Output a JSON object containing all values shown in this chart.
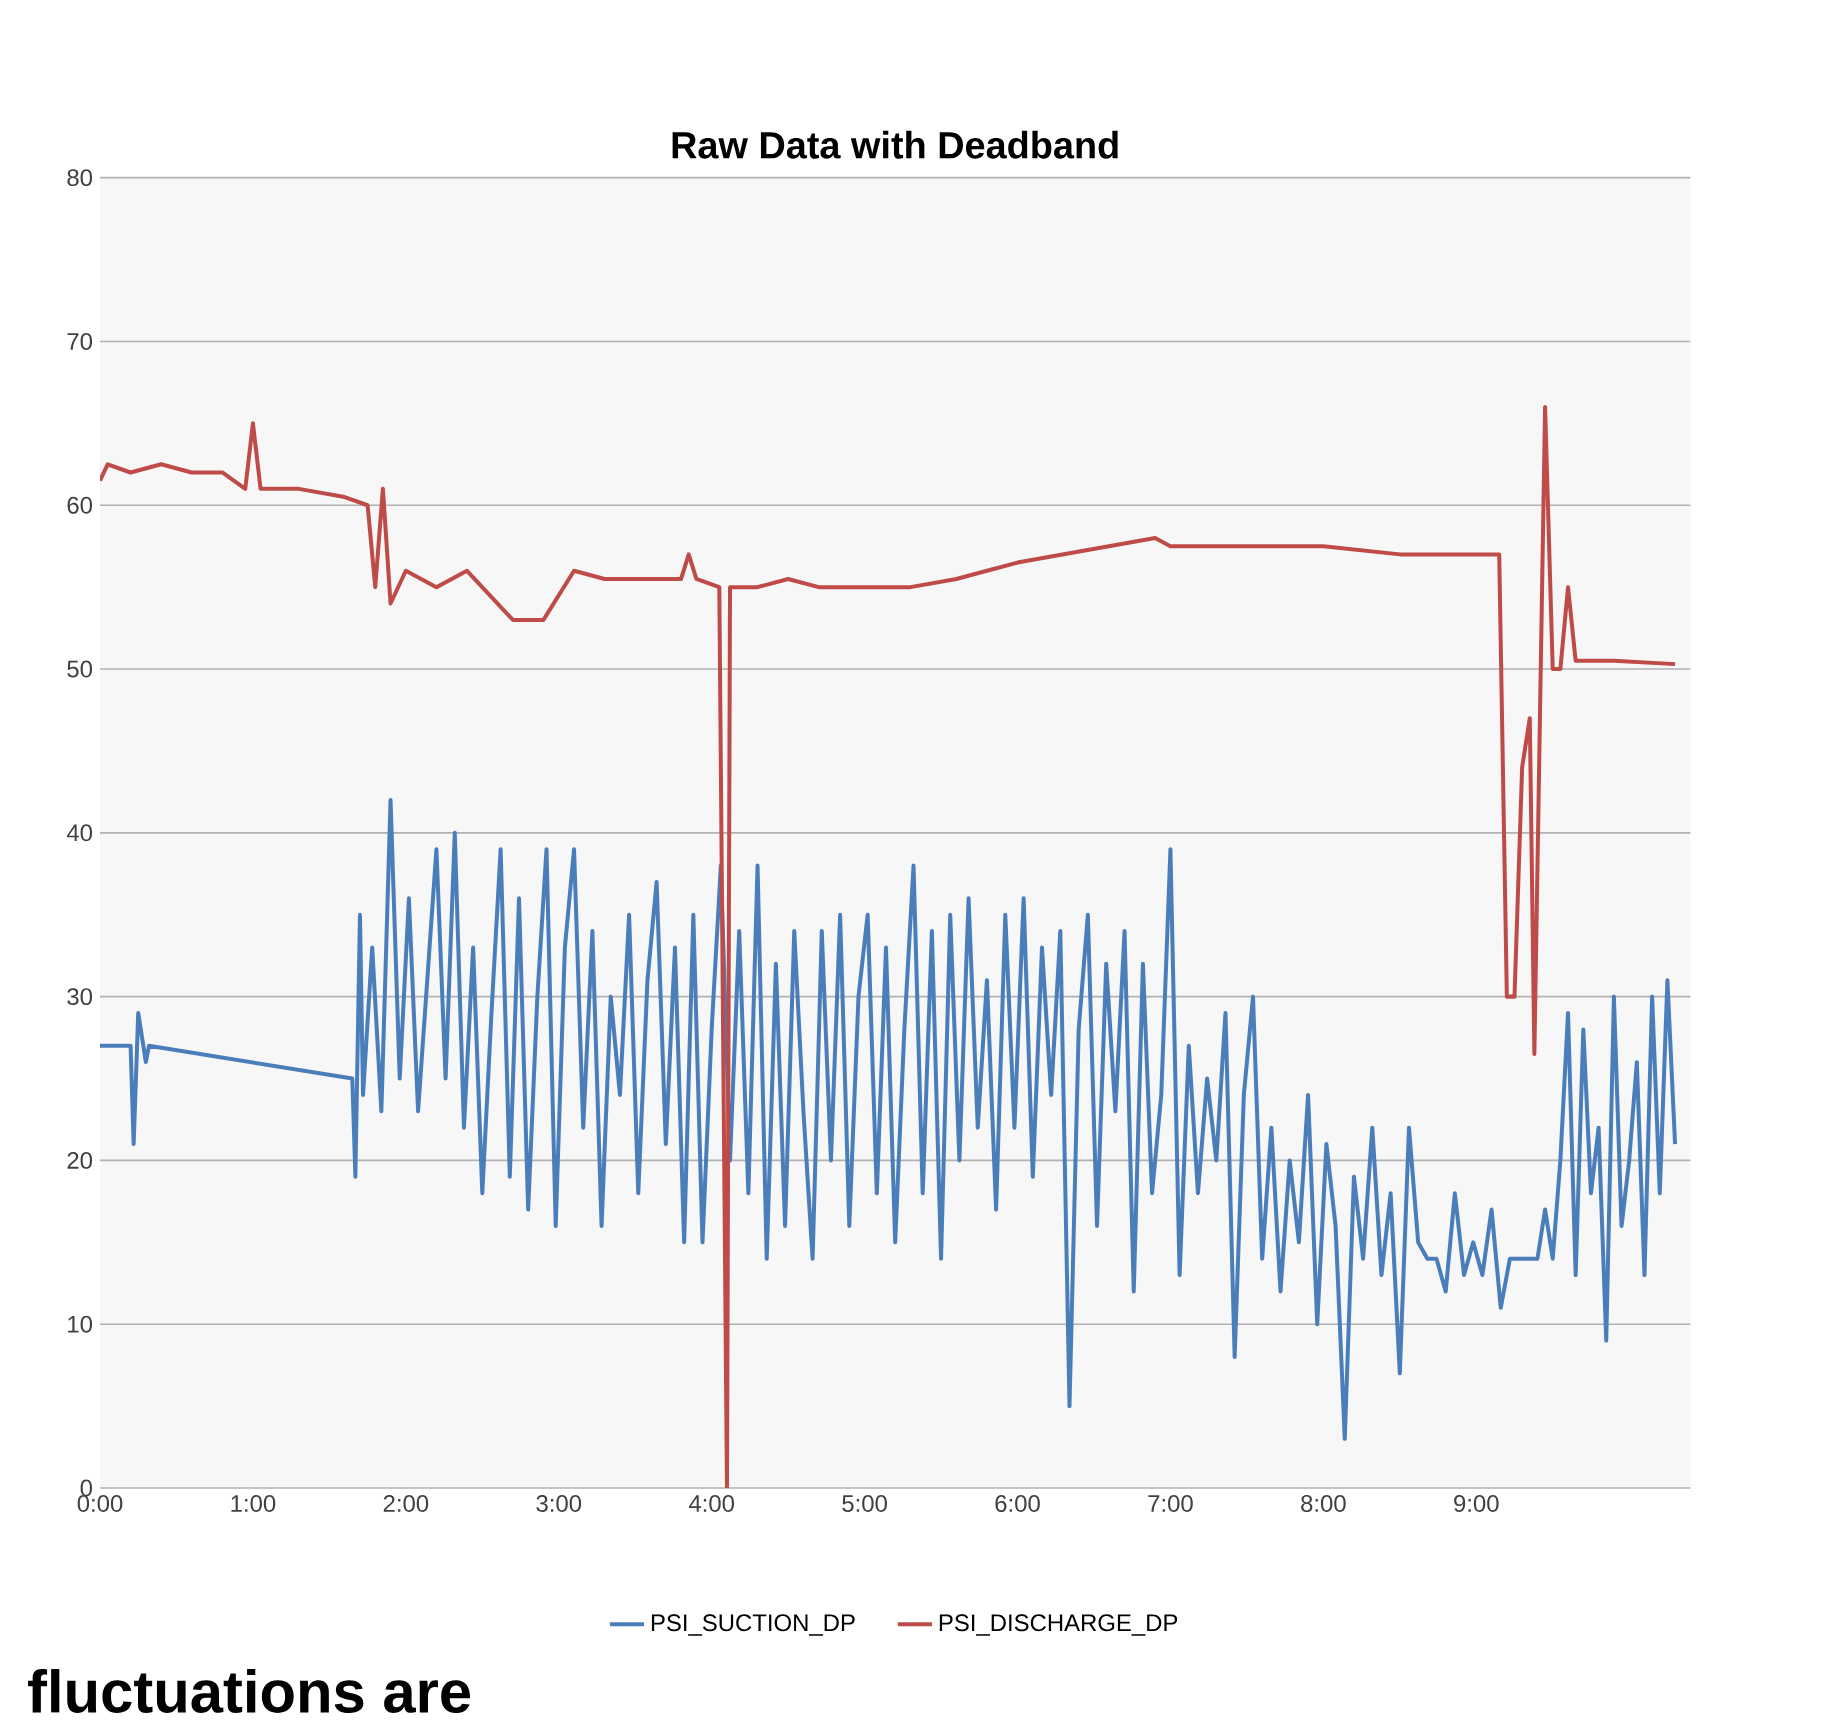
{
  "chart_data": {
    "type": "line",
    "title": "Raw Data with Deadband",
    "xlim": [
      0,
      10.4
    ],
    "xticks": [
      {
        "value": 0,
        "label": "0:00"
      },
      {
        "value": 1,
        "label": "1:00"
      },
      {
        "value": 2,
        "label": "2:00"
      },
      {
        "value": 3,
        "label": "3:00"
      },
      {
        "value": 4,
        "label": "4:00"
      },
      {
        "value": 5,
        "label": "5:00"
      },
      {
        "value": 6,
        "label": "6:00"
      },
      {
        "value": 7,
        "label": "7:00"
      },
      {
        "value": 8,
        "label": "8:00"
      },
      {
        "value": 9,
        "label": "9:00"
      }
    ],
    "ylim": [
      0,
      80
    ],
    "yticks": [
      0,
      10,
      20,
      30,
      40,
      50,
      60,
      70,
      80
    ],
    "grid": "y",
    "legend": "bottom",
    "marker": "none",
    "line_style": "solid",
    "annotations": [
      "fluctuations are"
    ],
    "series": [
      {
        "name": "PSI_SUCTION_DP",
        "color": "#4a7ebb",
        "x": [
          0,
          0.2,
          0.22,
          0.25,
          0.3,
          0.32,
          1.65,
          1.67,
          1.7,
          1.72,
          1.78,
          1.84,
          1.9,
          1.96,
          2.02,
          2.08,
          2.14,
          2.2,
          2.26,
          2.32,
          2.38,
          2.44,
          2.5,
          2.56,
          2.62,
          2.68,
          2.74,
          2.8,
          2.86,
          2.92,
          2.98,
          3.04,
          3.1,
          3.16,
          3.22,
          3.28,
          3.34,
          3.4,
          3.46,
          3.52,
          3.58,
          3.64,
          3.7,
          3.76,
          3.82,
          3.88,
          3.94,
          4.0,
          4.06,
          4.12,
          4.18,
          4.24,
          4.3,
          4.36,
          4.42,
          4.48,
          4.54,
          4.6,
          4.66,
          4.72,
          4.78,
          4.84,
          4.9,
          4.96,
          5.02,
          5.08,
          5.14,
          5.2,
          5.26,
          5.32,
          5.38,
          5.44,
          5.5,
          5.56,
          5.62,
          5.68,
          5.74,
          5.8,
          5.86,
          5.92,
          5.98,
          6.04,
          6.1,
          6.16,
          6.22,
          6.28,
          6.34,
          6.4,
          6.46,
          6.52,
          6.58,
          6.64,
          6.7,
          6.76,
          6.82,
          6.88,
          6.94,
          7.0,
          7.06,
          7.12,
          7.18,
          7.24,
          7.3,
          7.36,
          7.42,
          7.48,
          7.54,
          7.6,
          7.66,
          7.72,
          7.78,
          7.84,
          7.9,
          7.96,
          8.02,
          8.08,
          8.14,
          8.2,
          8.26,
          8.32,
          8.38,
          8.44,
          8.5,
          8.56,
          8.62,
          8.68,
          8.74,
          8.8,
          8.86,
          8.92,
          8.98,
          9.04,
          9.1,
          9.16,
          9.22,
          9.4,
          9.45,
          9.5,
          9.55,
          9.6,
          9.65,
          9.7,
          9.75,
          9.8,
          9.85,
          9.9,
          9.95,
          10.0,
          10.05,
          10.1,
          10.15,
          10.2,
          10.25,
          10.3
        ],
        "values": [
          27,
          27,
          21,
          29,
          26,
          27,
          25,
          19,
          35,
          24,
          33,
          23,
          42,
          25,
          36,
          23,
          31,
          39,
          25,
          40,
          22,
          33,
          18,
          29,
          39,
          19,
          36,
          17,
          30,
          39,
          16,
          33,
          39,
          22,
          34,
          16,
          30,
          24,
          35,
          18,
          31,
          37,
          21,
          33,
          15,
          35,
          15,
          28,
          38,
          20,
          34,
          18,
          38,
          14,
          32,
          16,
          34,
          23,
          14,
          34,
          20,
          35,
          16,
          30,
          35,
          18,
          33,
          15,
          28,
          38,
          18,
          34,
          14,
          35,
          20,
          36,
          22,
          31,
          17,
          35,
          22,
          36,
          19,
          33,
          24,
          34,
          5,
          28,
          35,
          16,
          32,
          23,
          34,
          12,
          32,
          18,
          24,
          39,
          13,
          27,
          18,
          25,
          20,
          29,
          8,
          24,
          30,
          14,
          22,
          12,
          20,
          15,
          24,
          10,
          21,
          16,
          3,
          19,
          14,
          22,
          13,
          18,
          7,
          22,
          15,
          14,
          14,
          12,
          18,
          13,
          15,
          13,
          17,
          11,
          14,
          14,
          17,
          14,
          20,
          29,
          13,
          28,
          18,
          22,
          9,
          30,
          16,
          20,
          26,
          13,
          30,
          18,
          31,
          21
        ]
      },
      {
        "name": "PSI_DISCHARGE_DP",
        "color": "#be4b48",
        "x": [
          0,
          0.05,
          0.2,
          0.4,
          0.6,
          0.8,
          0.95,
          1.0,
          1.05,
          1.3,
          1.6,
          1.75,
          1.8,
          1.85,
          1.9,
          2.0,
          2.2,
          2.4,
          2.6,
          2.7,
          2.9,
          3.1,
          3.3,
          3.5,
          3.8,
          3.85,
          3.9,
          4.05,
          4.1,
          4.12,
          4.3,
          4.5,
          4.7,
          5.0,
          5.3,
          5.6,
          5.8,
          6.0,
          6.3,
          6.6,
          6.9,
          7.0,
          7.5,
          8.0,
          8.5,
          9.0,
          9.15,
          9.2,
          9.25,
          9.3,
          9.35,
          9.38,
          9.45,
          9.5,
          9.55,
          9.6,
          9.65,
          9.9,
          10.3
        ],
        "values": [
          61.5,
          62.5,
          62,
          62.5,
          62,
          62,
          61,
          65,
          61,
          61,
          60.5,
          60,
          55,
          61,
          54,
          56,
          55,
          56,
          54,
          53,
          53,
          56,
          55.5,
          55.5,
          55.5,
          57,
          55.5,
          55,
          0,
          55,
          55,
          55.5,
          55,
          55,
          55,
          55.5,
          56,
          56.5,
          57,
          57.5,
          58,
          57.5,
          57.5,
          57.5,
          57,
          57,
          57,
          30,
          30,
          44,
          47,
          26.5,
          66,
          50,
          50,
          55,
          50.5,
          50.5,
          50.3
        ]
      }
    ]
  }
}
